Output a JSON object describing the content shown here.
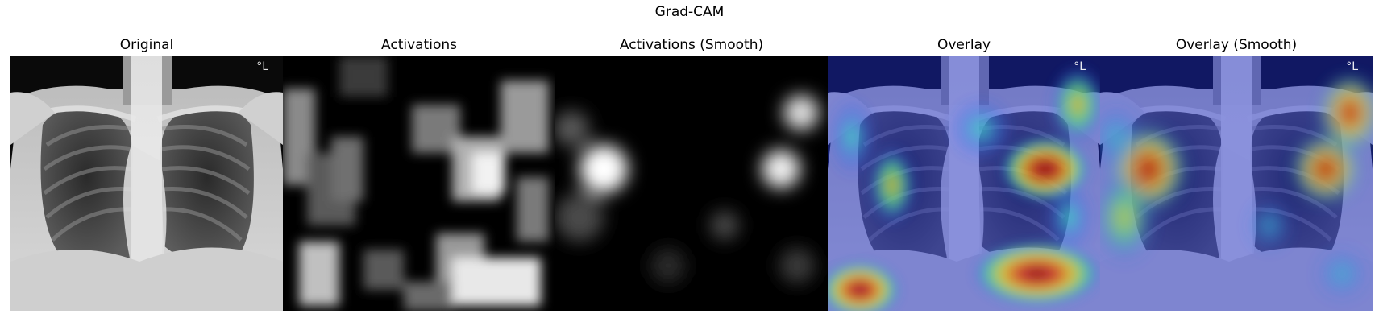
{
  "figure": {
    "title": "Grad-CAM",
    "panels": [
      {
        "id": "original",
        "title": "Original"
      },
      {
        "id": "activations",
        "title": "Activations"
      },
      {
        "id": "activations-smooth",
        "title": "Activations (Smooth)"
      },
      {
        "id": "overlay",
        "title": "Overlay"
      },
      {
        "id": "overlay-smooth",
        "title": "Overlay (Smooth)"
      }
    ],
    "side_marker": "°L"
  }
}
